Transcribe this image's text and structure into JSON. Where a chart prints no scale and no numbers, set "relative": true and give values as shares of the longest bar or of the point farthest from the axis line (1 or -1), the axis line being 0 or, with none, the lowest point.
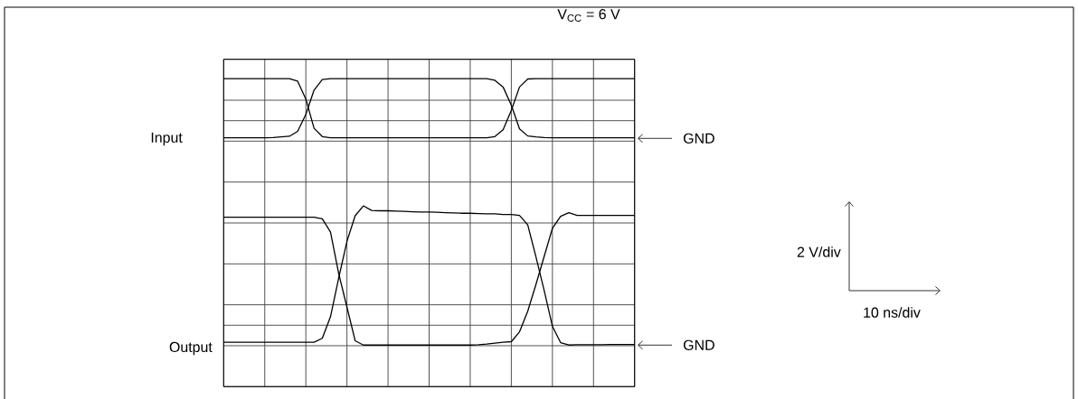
{
  "chart_data": {
    "type": "line",
    "title": "V$_{CC}$ = 6 V",
    "relative": true,
    "categories": [
      null,
      null,
      null,
      null,
      null,
      null,
      null,
      null,
      null,
      null,
      null,
      null,
      null,
      null,
      null,
      null,
      null,
      null,
      null,
      null,
      null,
      null,
      null,
      null,
      null,
      null,
      null,
      null,
      null,
      null,
      null,
      null,
      null,
      null,
      null,
      null,
      null,
      null,
      null,
      null,
      null,
      null,
      null,
      null,
      null,
      null,
      null,
      null,
      null,
      null,
      null
    ],
    "grid": true,
    "marker": "none",
    "line_style": "solid",
    "series": [
      {
        "color": "#000000",
        "values": [
          1,
          1,
          1,
          1,
          1,
          1,
          1,
          1,
          1,
          0.992,
          0.934,
          0.839,
          0.812,
          0.808,
          0.808,
          0.808,
          0.808,
          0.808,
          0.808,
          0.808,
          0.808,
          0.808,
          0.808,
          0.808,
          0.808,
          0.808,
          0.808,
          0.808,
          0.808,
          0.808,
          0.808,
          0.808,
          0.808,
          0.812,
          0.834,
          0.897,
          0.973,
          0.999,
          1,
          1,
          1,
          1,
          1,
          1,
          1,
          1,
          1,
          1,
          1,
          1,
          1
        ]
      },
      {
        "color": "#000000",
        "values": [
          0.808,
          0.808,
          0.808,
          0.808,
          0.808,
          0.808,
          0.809,
          0.811,
          0.813,
          0.829,
          0.884,
          0.963,
          0.997,
          1,
          1,
          1,
          1,
          1,
          1,
          1,
          1,
          1,
          1,
          1,
          1,
          1,
          1,
          1,
          1,
          1,
          1,
          1,
          1,
          0.995,
          0.973,
          0.914,
          0.837,
          0.814,
          0.811,
          0.809,
          0.808,
          0.808,
          0.808,
          0.808,
          0.808,
          0.808,
          0.808,
          0.808,
          0.808,
          0.808,
          0.808
        ]
      },
      {
        "color": "#000000",
        "values": [
          0.55,
          0.55,
          0.55,
          0.55,
          0.55,
          0.55,
          0.55,
          0.55,
          0.55,
          0.55,
          0.55,
          0.55,
          0.545,
          0.502,
          0.367,
          0.258,
          0.149,
          0.135,
          0.135,
          0.135,
          0.135,
          0.135,
          0.135,
          0.135,
          0.135,
          0.135,
          0.135,
          0.135,
          0.135,
          0.135,
          0.135,
          0.136,
          0.138,
          0.141,
          0.144,
          0.146,
          0.178,
          0.245,
          0.332,
          0.423,
          0.514,
          0.553,
          0.565,
          0.556,
          0.556,
          0.556,
          0.556,
          0.556,
          0.556,
          0.556,
          0.556
        ]
      },
      {
        "color": "#000000",
        "values": [
          0.144,
          0.144,
          0.144,
          0.144,
          0.144,
          0.144,
          0.144,
          0.144,
          0.144,
          0.144,
          0.144,
          0.144,
          0.157,
          0.227,
          0.353,
          0.472,
          0.555,
          0.587,
          0.572,
          0.571,
          0.571,
          0.57,
          0.569,
          0.568,
          0.567,
          0.567,
          0.566,
          0.565,
          0.564,
          0.563,
          0.563,
          0.562,
          0.561,
          0.561,
          0.559,
          0.559,
          0.556,
          0.525,
          0.421,
          0.312,
          0.196,
          0.143,
          0.135,
          0.136,
          0.136,
          0.136,
          0.136,
          0.137,
          0.137,
          0.137,
          0.137
        ]
      }
    ],
    "annotations": [
      "Input",
      "Output",
      "GND",
      "GND",
      "2 V/div",
      "10 ns/div"
    ]
  }
}
